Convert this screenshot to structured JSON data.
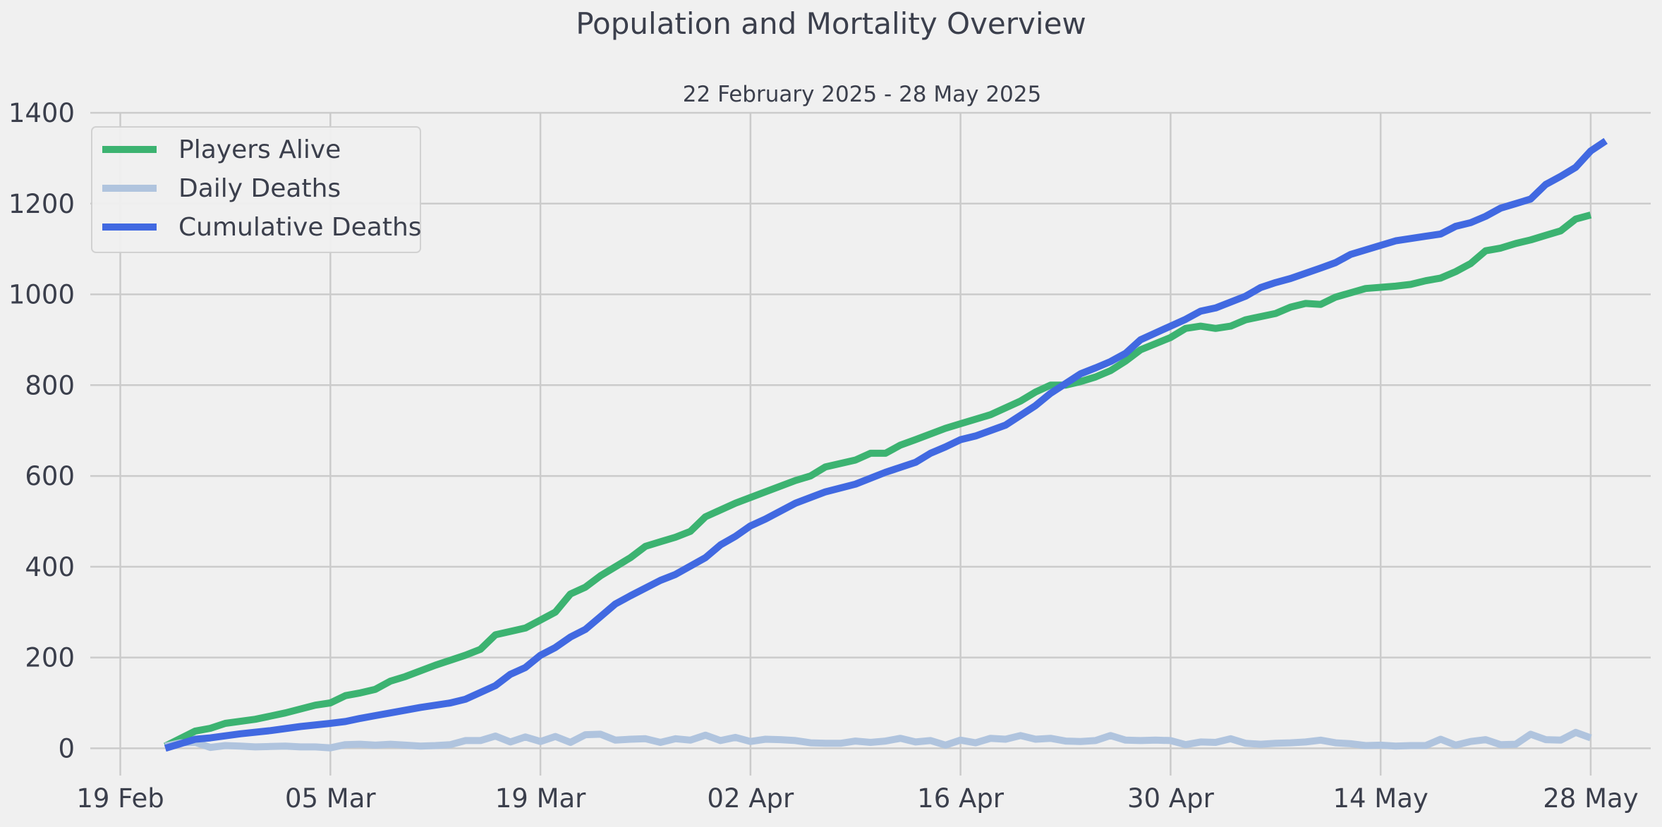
{
  "title": "Population and Mortality Overview",
  "subtitle": "22 February 2025 - 28 May 2025",
  "chart_data": {
    "type": "line",
    "title": "Population and Mortality Overview",
    "subtitle": "22 February 2025 - 28 May 2025",
    "xlabel": "",
    "ylabel": "",
    "grid": true,
    "legend_position": "top-left",
    "x_start": "2025-02-22",
    "x_end": "2025-05-28",
    "xlim": [
      "2025-02-17",
      "2025-06-01"
    ],
    "ylim": [
      -60,
      1400
    ],
    "x_ticks": [
      {
        "date": "2025-02-19",
        "label": "19 Feb"
      },
      {
        "date": "2025-03-05",
        "label": "05 Mar"
      },
      {
        "date": "2025-03-19",
        "label": "19 Mar"
      },
      {
        "date": "2025-04-02",
        "label": "02 Apr"
      },
      {
        "date": "2025-04-16",
        "label": "16 Apr"
      },
      {
        "date": "2025-04-30",
        "label": "30 Apr"
      },
      {
        "date": "2025-05-14",
        "label": "14 May"
      },
      {
        "date": "2025-05-28",
        "label": "28 May"
      }
    ],
    "y_ticks": [
      0,
      200,
      400,
      600,
      800,
      1000,
      1200,
      1400
    ],
    "series": [
      {
        "name": "Players Alive",
        "color": "#3cb371",
        "points": [
          [
            "2025-02-22",
            5
          ],
          [
            "2025-02-24",
            38
          ],
          [
            "2025-02-25",
            44
          ],
          [
            "2025-02-26",
            55
          ],
          [
            "2025-02-28",
            64
          ],
          [
            "2025-03-02",
            78
          ],
          [
            "2025-03-04",
            95
          ],
          [
            "2025-03-05",
            100
          ],
          [
            "2025-03-06",
            116
          ],
          [
            "2025-03-07",
            122
          ],
          [
            "2025-03-08",
            130
          ],
          [
            "2025-03-09",
            148
          ],
          [
            "2025-03-10",
            158
          ],
          [
            "2025-03-12",
            183
          ],
          [
            "2025-03-14",
            205
          ],
          [
            "2025-03-15",
            218
          ],
          [
            "2025-03-16",
            250
          ],
          [
            "2025-03-18",
            265
          ],
          [
            "2025-03-20",
            300
          ],
          [
            "2025-03-21",
            340
          ],
          [
            "2025-03-22",
            355
          ],
          [
            "2025-03-23",
            380
          ],
          [
            "2025-03-25",
            420
          ],
          [
            "2025-03-26",
            445
          ],
          [
            "2025-03-27",
            455
          ],
          [
            "2025-03-28",
            465
          ],
          [
            "2025-03-29",
            478
          ],
          [
            "2025-03-30",
            510
          ],
          [
            "2025-04-01",
            540
          ],
          [
            "2025-04-03",
            565
          ],
          [
            "2025-04-05",
            590
          ],
          [
            "2025-04-06",
            600
          ],
          [
            "2025-04-07",
            620
          ],
          [
            "2025-04-09",
            635
          ],
          [
            "2025-04-10",
            650
          ],
          [
            "2025-04-11",
            650
          ],
          [
            "2025-04-12",
            668
          ],
          [
            "2025-04-13",
            680
          ],
          [
            "2025-04-15",
            705
          ],
          [
            "2025-04-16",
            715
          ],
          [
            "2025-04-18",
            735
          ],
          [
            "2025-04-20",
            765
          ],
          [
            "2025-04-21",
            785
          ],
          [
            "2025-04-22",
            800
          ],
          [
            "2025-04-23",
            800
          ],
          [
            "2025-04-24",
            808
          ],
          [
            "2025-04-25",
            818
          ],
          [
            "2025-04-26",
            832
          ],
          [
            "2025-04-27",
            853
          ],
          [
            "2025-04-28",
            878
          ],
          [
            "2025-04-30",
            905
          ],
          [
            "2025-05-01",
            925
          ],
          [
            "2025-05-02",
            930
          ],
          [
            "2025-05-03",
            925
          ],
          [
            "2025-05-04",
            930
          ],
          [
            "2025-05-05",
            944
          ],
          [
            "2025-05-07",
            958
          ],
          [
            "2025-05-08",
            972
          ],
          [
            "2025-05-09",
            980
          ],
          [
            "2025-05-10",
            978
          ],
          [
            "2025-05-11",
            994
          ],
          [
            "2025-05-13",
            1013
          ],
          [
            "2025-05-15",
            1018
          ],
          [
            "2025-05-16",
            1022
          ],
          [
            "2025-05-17",
            1030
          ],
          [
            "2025-05-18",
            1036
          ],
          [
            "2025-05-19",
            1050
          ],
          [
            "2025-05-20",
            1068
          ],
          [
            "2025-05-21",
            1096
          ],
          [
            "2025-05-22",
            1102
          ],
          [
            "2025-05-23",
            1112
          ],
          [
            "2025-05-24",
            1120
          ],
          [
            "2025-05-25",
            1130
          ],
          [
            "2025-05-26",
            1140
          ],
          [
            "2025-05-27",
            1166
          ],
          [
            "2025-05-28",
            1175
          ]
        ]
      },
      {
        "name": "Daily Deaths",
        "color": "#b0c4de",
        "points": [
          [
            "2025-02-22",
            5
          ],
          [
            "2025-02-23",
            12
          ],
          [
            "2025-02-24",
            13
          ],
          [
            "2025-02-25",
            2
          ],
          [
            "2025-02-26",
            6
          ],
          [
            "2025-02-27",
            5
          ],
          [
            "2025-02-28",
            3
          ],
          [
            "2025-03-01",
            4
          ],
          [
            "2025-03-02",
            5
          ],
          [
            "2025-03-03",
            3
          ],
          [
            "2025-03-04",
            3
          ],
          [
            "2025-03-05",
            1
          ],
          [
            "2025-03-06",
            8
          ],
          [
            "2025-03-07",
            9
          ],
          [
            "2025-03-08",
            7
          ],
          [
            "2025-03-09",
            9
          ],
          [
            "2025-03-10",
            7
          ],
          [
            "2025-03-11",
            5
          ],
          [
            "2025-03-12",
            6
          ],
          [
            "2025-03-13",
            8
          ],
          [
            "2025-03-14",
            17
          ],
          [
            "2025-03-15",
            17
          ],
          [
            "2025-03-16",
            27
          ],
          [
            "2025-03-17",
            14
          ],
          [
            "2025-03-18",
            25
          ],
          [
            "2025-03-19",
            15
          ],
          [
            "2025-03-20",
            26
          ],
          [
            "2025-03-21",
            13
          ],
          [
            "2025-03-22",
            30
          ],
          [
            "2025-03-23",
            31
          ],
          [
            "2025-03-24",
            18
          ],
          [
            "2025-03-25",
            20
          ],
          [
            "2025-03-26",
            21
          ],
          [
            "2025-03-27",
            13
          ],
          [
            "2025-03-28",
            21
          ],
          [
            "2025-03-29",
            18
          ],
          [
            "2025-03-30",
            29
          ],
          [
            "2025-03-31",
            17
          ],
          [
            "2025-04-01",
            24
          ],
          [
            "2025-04-02",
            15
          ],
          [
            "2025-04-03",
            20
          ],
          [
            "2025-04-04",
            19
          ],
          [
            "2025-04-05",
            17
          ],
          [
            "2025-04-06",
            12
          ],
          [
            "2025-04-07",
            11
          ],
          [
            "2025-04-08",
            11
          ],
          [
            "2025-04-09",
            16
          ],
          [
            "2025-04-10",
            13
          ],
          [
            "2025-04-11",
            16
          ],
          [
            "2025-04-12",
            22
          ],
          [
            "2025-04-13",
            14
          ],
          [
            "2025-04-14",
            17
          ],
          [
            "2025-04-15",
            7
          ],
          [
            "2025-04-16",
            18
          ],
          [
            "2025-04-17",
            12
          ],
          [
            "2025-04-18",
            22
          ],
          [
            "2025-04-19",
            20
          ],
          [
            "2025-04-20",
            28
          ],
          [
            "2025-04-21",
            20
          ],
          [
            "2025-04-22",
            22
          ],
          [
            "2025-04-23",
            16
          ],
          [
            "2025-04-24",
            15
          ],
          [
            "2025-04-25",
            17
          ],
          [
            "2025-04-26",
            28
          ],
          [
            "2025-04-27",
            18
          ],
          [
            "2025-04-28",
            17
          ],
          [
            "2025-04-29",
            18
          ],
          [
            "2025-04-30",
            17
          ],
          [
            "2025-05-01",
            8
          ],
          [
            "2025-05-02",
            14
          ],
          [
            "2025-05-03",
            13
          ],
          [
            "2025-05-04",
            21
          ],
          [
            "2025-05-05",
            11
          ],
          [
            "2025-05-06",
            9
          ],
          [
            "2025-05-07",
            11
          ],
          [
            "2025-05-08",
            12
          ],
          [
            "2025-05-09",
            14
          ],
          [
            "2025-05-10",
            18
          ],
          [
            "2025-05-11",
            12
          ],
          [
            "2025-05-12",
            10
          ],
          [
            "2025-05-13",
            6
          ],
          [
            "2025-05-14",
            7
          ],
          [
            "2025-05-15",
            5
          ],
          [
            "2025-05-16",
            6
          ],
          [
            "2025-05-17",
            6
          ],
          [
            "2025-05-18",
            20
          ],
          [
            "2025-05-19",
            7
          ],
          [
            "2025-05-20",
            15
          ],
          [
            "2025-05-21",
            19
          ],
          [
            "2025-05-22",
            8
          ],
          [
            "2025-05-23",
            9
          ],
          [
            "2025-05-24",
            31
          ],
          [
            "2025-05-25",
            19
          ],
          [
            "2025-05-26",
            18
          ],
          [
            "2025-05-27",
            35
          ],
          [
            "2025-05-28",
            23
          ]
        ]
      },
      {
        "name": "Cumulative Deaths",
        "color": "#4169e1",
        "points": [
          [
            "2025-02-22",
            0
          ],
          [
            "2025-02-24",
            20
          ],
          [
            "2025-02-25",
            23
          ],
          [
            "2025-02-27",
            32
          ],
          [
            "2025-03-01",
            39
          ],
          [
            "2025-03-03",
            48
          ],
          [
            "2025-03-05",
            55
          ],
          [
            "2025-03-06",
            59
          ],
          [
            "2025-03-07",
            66
          ],
          [
            "2025-03-08",
            72
          ],
          [
            "2025-03-09",
            78
          ],
          [
            "2025-03-11",
            90
          ],
          [
            "2025-03-13",
            100
          ],
          [
            "2025-03-14",
            108
          ],
          [
            "2025-03-16",
            138
          ],
          [
            "2025-03-17",
            163
          ],
          [
            "2025-03-18",
            178
          ],
          [
            "2025-03-19",
            205
          ],
          [
            "2025-03-20",
            222
          ],
          [
            "2025-03-21",
            245
          ],
          [
            "2025-03-22",
            262
          ],
          [
            "2025-03-23",
            290
          ],
          [
            "2025-03-24",
            318
          ],
          [
            "2025-03-25",
            336
          ],
          [
            "2025-03-27",
            370
          ],
          [
            "2025-03-28",
            383
          ],
          [
            "2025-03-30",
            420
          ],
          [
            "2025-03-31",
            448
          ],
          [
            "2025-04-01",
            467
          ],
          [
            "2025-04-02",
            490
          ],
          [
            "2025-04-03",
            505
          ],
          [
            "2025-04-05",
            540
          ],
          [
            "2025-04-07",
            565
          ],
          [
            "2025-04-09",
            582
          ],
          [
            "2025-04-11",
            608
          ],
          [
            "2025-04-13",
            630
          ],
          [
            "2025-04-14",
            650
          ],
          [
            "2025-04-15",
            664
          ],
          [
            "2025-04-16",
            680
          ],
          [
            "2025-04-17",
            688
          ],
          [
            "2025-04-19",
            712
          ],
          [
            "2025-04-21",
            755
          ],
          [
            "2025-04-22",
            782
          ],
          [
            "2025-04-24",
            825
          ],
          [
            "2025-04-25",
            838
          ],
          [
            "2025-04-26",
            852
          ],
          [
            "2025-04-27",
            870
          ],
          [
            "2025-04-28",
            900
          ],
          [
            "2025-05-01",
            945
          ],
          [
            "2025-05-02",
            963
          ],
          [
            "2025-05-03",
            970
          ],
          [
            "2025-05-05",
            996
          ],
          [
            "2025-05-06",
            1015
          ],
          [
            "2025-05-07",
            1026
          ],
          [
            "2025-05-08",
            1035
          ],
          [
            "2025-05-10",
            1058
          ],
          [
            "2025-05-11",
            1070
          ],
          [
            "2025-05-12",
            1088
          ],
          [
            "2025-05-14",
            1108
          ],
          [
            "2025-05-15",
            1118
          ],
          [
            "2025-05-17",
            1128
          ],
          [
            "2025-05-18",
            1133
          ],
          [
            "2025-05-19",
            1150
          ],
          [
            "2025-05-20",
            1158
          ],
          [
            "2025-05-21",
            1172
          ],
          [
            "2025-05-22",
            1190
          ],
          [
            "2025-05-23",
            1200
          ],
          [
            "2025-05-24",
            1210
          ],
          [
            "2025-05-25",
            1242
          ],
          [
            "2025-05-26",
            1260
          ],
          [
            "2025-05-27",
            1280
          ],
          [
            "2025-05-28",
            1316
          ],
          [
            "2025-05-29",
            1338
          ]
        ]
      }
    ]
  }
}
